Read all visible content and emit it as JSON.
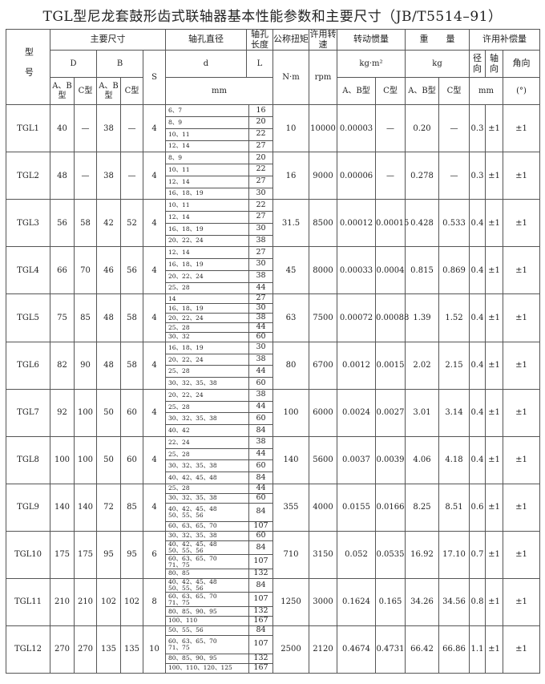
{
  "title": "TGL型尼龙套鼓形齿式联轴器基本性能参数和主要尺寸（JB/T5514–91）",
  "header": {
    "model": "型号",
    "main_dims": "主要尺寸",
    "bore_dia": "轴孔直径",
    "bore_len": "轴孔长度",
    "torque": "公称扭矩",
    "speed": "许用转速",
    "inertia": "转动惯量",
    "weight": "重　　量",
    "comp": "许用补偿量",
    "D": "D",
    "B": "B",
    "S": "S",
    "d": "d",
    "L": "L",
    "torque_unit": "N·m",
    "speed_unit": "rpm",
    "inertia_unit": "kg·m²",
    "weight_unit": "kg",
    "radial": "径向",
    "axial": "轴向",
    "angular": "角向",
    "ab": "A、B型",
    "c": "C型",
    "mm": "mm",
    "deg": "(°)"
  },
  "rows": [
    {
      "model": "TGL1",
      "D_ab": "40",
      "D_c": "—",
      "B_ab": "38",
      "B_c": "—",
      "S": "4",
      "bores": [
        {
          "d": [
            "6、7"
          ],
          "L": "16"
        },
        {
          "d": [
            "8、9"
          ],
          "L": "20"
        },
        {
          "d": [
            "10、11"
          ],
          "L": "22"
        },
        {
          "d": [
            "12、14"
          ],
          "L": "27"
        }
      ],
      "torque": "10",
      "speed": "10000",
      "j_ab": "0.00003",
      "j_c": "—",
      "w_ab": "0.20",
      "w_c": "—",
      "radial": "0.3",
      "axial": "±1",
      "angular": "±1"
    },
    {
      "model": "TGL2",
      "D_ab": "48",
      "D_c": "—",
      "B_ab": "38",
      "B_c": "—",
      "S": "4",
      "bores": [
        {
          "d": [
            "8、9"
          ],
          "L": "20"
        },
        {
          "d": [
            "10、11"
          ],
          "L": "22"
        },
        {
          "d": [
            "12、14"
          ],
          "L": "27"
        },
        {
          "d": [
            "16、18、19"
          ],
          "L": "30"
        }
      ],
      "torque": "16",
      "speed": "9000",
      "j_ab": "0.00006",
      "j_c": "—",
      "w_ab": "0.278",
      "w_c": "—",
      "radial": "0.3",
      "axial": "±1",
      "angular": "±1"
    },
    {
      "model": "TGL3",
      "D_ab": "56",
      "D_c": "58",
      "B_ab": "42",
      "B_c": "52",
      "S": "4",
      "bores": [
        {
          "d": [
            "10、11"
          ],
          "L": "22"
        },
        {
          "d": [
            "12、14"
          ],
          "L": "27"
        },
        {
          "d": [
            "16、18、19"
          ],
          "L": "30"
        },
        {
          "d": [
            "20、22、24"
          ],
          "L": "38"
        }
      ],
      "torque": "31.5",
      "speed": "8500",
      "j_ab": "0.00012",
      "j_c": "0.00015",
      "w_ab": "0.428",
      "w_c": "0.533",
      "radial": "0.4",
      "axial": "±1",
      "angular": "±1"
    },
    {
      "model": "TGL4",
      "D_ab": "66",
      "D_c": "70",
      "B_ab": "46",
      "B_c": "56",
      "S": "4",
      "bores": [
        {
          "d": [
            "12、14"
          ],
          "L": "27"
        },
        {
          "d": [
            "16、18、19"
          ],
          "L": "30"
        },
        {
          "d": [
            "20、22、24"
          ],
          "L": "38"
        },
        {
          "d": [
            "25、28"
          ],
          "L": "44"
        }
      ],
      "torque": "45",
      "speed": "8000",
      "j_ab": "0.00033",
      "j_c": "0.0004",
      "w_ab": "0.815",
      "w_c": "0.869",
      "radial": "0.4",
      "axial": "±1",
      "angular": "±1"
    },
    {
      "model": "TGL5",
      "D_ab": "75",
      "D_c": "85",
      "B_ab": "48",
      "B_c": "58",
      "S": "4",
      "bores": [
        {
          "d": [
            "14"
          ],
          "L": "27"
        },
        {
          "d": [
            "16、18、19"
          ],
          "L": "30"
        },
        {
          "d": [
            "20、22、24"
          ],
          "L": "38"
        },
        {
          "d": [
            "25、28"
          ],
          "L": "44"
        },
        {
          "d": [
            "30、32"
          ],
          "L": "60"
        }
      ],
      "torque": "63",
      "speed": "7500",
      "j_ab": "0.00072",
      "j_c": "0.00088",
      "w_ab": "1.39",
      "w_c": "1.52",
      "radial": "0.4",
      "axial": "±1",
      "angular": "±1"
    },
    {
      "model": "TGL6",
      "D_ab": "82",
      "D_c": "90",
      "B_ab": "48",
      "B_c": "58",
      "S": "4",
      "bores": [
        {
          "d": [
            "16、18、19"
          ],
          "L": "30"
        },
        {
          "d": [
            "20、22、24"
          ],
          "L": "38"
        },
        {
          "d": [
            "25、28"
          ],
          "L": "44"
        },
        {
          "d": [
            "30、32、35、38"
          ],
          "L": "60"
        }
      ],
      "torque": "80",
      "speed": "6700",
      "j_ab": "0.0012",
      "j_c": "0.0015",
      "w_ab": "2.02",
      "w_c": "2.15",
      "radial": "0.4",
      "axial": "±1",
      "angular": "±1"
    },
    {
      "model": "TGL7",
      "D_ab": "92",
      "D_c": "100",
      "B_ab": "50",
      "B_c": "60",
      "S": "4",
      "bores": [
        {
          "d": [
            "20、22、24"
          ],
          "L": "38"
        },
        {
          "d": [
            "25、28"
          ],
          "L": "44"
        },
        {
          "d": [
            "30、32、35、38"
          ],
          "L": "60"
        },
        {
          "d": [
            "40、42"
          ],
          "L": "84"
        }
      ],
      "torque": "100",
      "speed": "6000",
      "j_ab": "0.0024",
      "j_c": "0.0027",
      "w_ab": "3.01",
      "w_c": "3.14",
      "radial": "0.4",
      "axial": "±1",
      "angular": "±1"
    },
    {
      "model": "TGL8",
      "D_ab": "100",
      "D_c": "100",
      "B_ab": "50",
      "B_c": "60",
      "S": "4",
      "bores": [
        {
          "d": [
            "22、24"
          ],
          "L": "38"
        },
        {
          "d": [
            "25、28"
          ],
          "L": "44"
        },
        {
          "d": [
            "30、32、35、38"
          ],
          "L": "60"
        },
        {
          "d": [
            "40、42、45、48"
          ],
          "L": "84"
        }
      ],
      "torque": "140",
      "speed": "5600",
      "j_ab": "0.0037",
      "j_c": "0.0039",
      "w_ab": "4.06",
      "w_c": "4.18",
      "radial": "0.4",
      "axial": "±1",
      "angular": "±1"
    },
    {
      "model": "TGL9",
      "D_ab": "140",
      "D_c": "140",
      "B_ab": "72",
      "B_c": "85",
      "S": "4",
      "bores": [
        {
          "d": [
            "25、28"
          ],
          "L": "44"
        },
        {
          "d": [
            "30、32、35、38"
          ],
          "L": "60"
        },
        {
          "d": [
            "40、42、45、48",
            "50、55、56"
          ],
          "L": "84"
        },
        {
          "d": [
            "60、63、65、70"
          ],
          "L": "107"
        }
      ],
      "torque": "355",
      "speed": "4000",
      "j_ab": "0.0155",
      "j_c": "0.0166",
      "w_ab": "8.25",
      "w_c": "8.51",
      "radial": "0.6",
      "axial": "±1",
      "angular": "±1"
    },
    {
      "model": "TGL10",
      "D_ab": "175",
      "D_c": "175",
      "B_ab": "95",
      "B_c": "95",
      "S": "6",
      "bores": [
        {
          "d": [
            "30、32、35、38"
          ],
          "L": "60"
        },
        {
          "d": [
            "40、42、45、48",
            "50、55、56"
          ],
          "L": "84"
        },
        {
          "d": [
            "60、63、65、70",
            "71、75"
          ],
          "L": "107"
        },
        {
          "d": [
            "80、85"
          ],
          "L": "132"
        }
      ],
      "torque": "710",
      "speed": "3150",
      "j_ab": "0.052",
      "j_c": "0.0535",
      "w_ab": "16.92",
      "w_c": "17.10",
      "radial": "0.7",
      "axial": "±1",
      "angular": "±1"
    },
    {
      "model": "TGL11",
      "D_ab": "210",
      "D_c": "210",
      "B_ab": "102",
      "B_c": "102",
      "S": "8",
      "bores": [
        {
          "d": [
            "40、42、45、48",
            "50、55、56"
          ],
          "L": "84"
        },
        {
          "d": [
            "60、63、65、70",
            "71、75"
          ],
          "L": "107"
        },
        {
          "d": [
            "80、85、90、95"
          ],
          "L": "132"
        },
        {
          "d": [
            "100、110"
          ],
          "L": "167"
        }
      ],
      "torque": "1250",
      "speed": "3000",
      "j_ab": "0.1624",
      "j_c": "0.165",
      "w_ab": "34.26",
      "w_c": "34.56",
      "radial": "0.8",
      "axial": "±1",
      "angular": "±1"
    },
    {
      "model": "TGL12",
      "D_ab": "270",
      "D_c": "270",
      "B_ab": "135",
      "B_c": "135",
      "S": "10",
      "bores": [
        {
          "d": [
            "50、55、56"
          ],
          "L": "84"
        },
        {
          "d": [
            "60、63、65、70",
            "71、75"
          ],
          "L": "107"
        },
        {
          "d": [
            "80、85、90、95"
          ],
          "L": "132"
        },
        {
          "d": [
            "100、110、120、125"
          ],
          "L": "167"
        }
      ],
      "torque": "2500",
      "speed": "2120",
      "j_ab": "0.4674",
      "j_c": "0.4731",
      "w_ab": "66.42",
      "w_c": "66.86",
      "radial": "1.1",
      "axial": "±1",
      "angular": "±1"
    }
  ]
}
